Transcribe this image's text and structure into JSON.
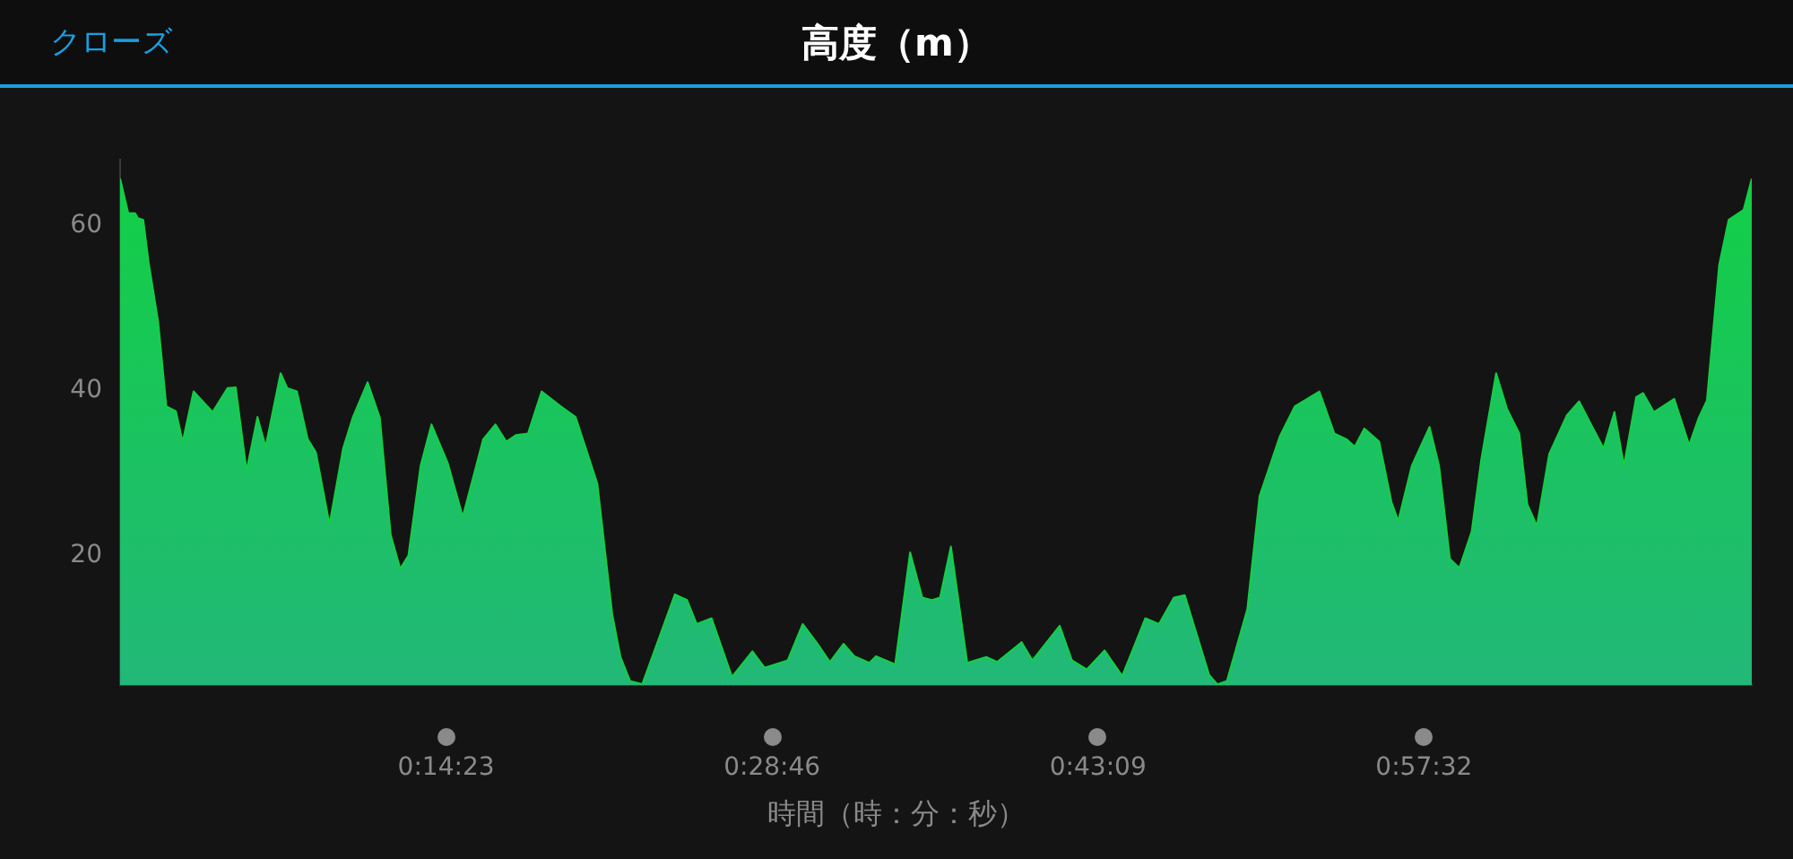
{
  "chart_data": {
    "type": "area",
    "title": "高度（m）",
    "xlabel": "時間（時：分：秒）",
    "annotations": [
      "クローズ"
    ],
    "color": "#12d044",
    "x": [
      0,
      0.006,
      0.011,
      0.013,
      0.017,
      0.021,
      0.028,
      0.034,
      0.041,
      0.046,
      0.054,
      0.068,
      0.079,
      0.085,
      0.093,
      0.101,
      0.107,
      0.118,
      0.123,
      0.13,
      0.138,
      0.144,
      0.154,
      0.164,
      0.171,
      0.182,
      0.191,
      0.199,
      0.206,
      0.212,
      0.221,
      0.229,
      0.241,
      0.252,
      0.267,
      0.276,
      0.284,
      0.291,
      0.3,
      0.31,
      0.324,
      0.335,
      0.351,
      0.362,
      0.368,
      0.375,
      0.384,
      0.408,
      0.417,
      0.424,
      0.435,
      0.45,
      0.465,
      0.474,
      0.491,
      0.502,
      0.513,
      0.522,
      0.532,
      0.54,
      0.551,
      0.556,
      0.57,
      0.581,
      0.59,
      0.597,
      0.603,
      0.611,
      0.623,
      0.637,
      0.645,
      0.663,
      0.671,
      0.691,
      0.7,
      0.711,
      0.724,
      0.737,
      0.754,
      0.764,
      0.775,
      0.783,
      0.801,
      0.807,
      0.814,
      0.829,
      0.838,
      0.853,
      0.864,
      0.882,
      0.893,
      0.902,
      0.908,
      0.915,
      0.926,
      0.935,
      0.94,
      0.95,
      0.963,
      0.97,
      0.978,
      0.985,
      0.994,
      1.001,
      1.012,
      1.02,
      1.029,
      1.035,
      1.042,
      1.051,
      1.064,
      1.073,
      1.091,
      1.099,
      1.106,
      1.115,
      1.12,
      1.128,
      1.143,
      1.154,
      1.161,
      1.167,
      1.176,
      1.183,
      1.194,
      1.2
    ],
    "values": [
      65.7,
      61.5,
      61.5,
      60.9,
      60.7,
      55.5,
      48.3,
      38.1,
      37.5,
      33.8,
      39.9,
      37.4,
      40.3,
      40.4,
      30.3,
      36.8,
      33.2,
      42.1,
      40.3,
      39.9,
      34.1,
      32.5,
      23.8,
      33.0,
      36.7,
      41.0,
      36.7,
      22.5,
      18.4,
      20.0,
      30.9,
      35.9,
      31.2,
      24.7,
      34.1,
      35.9,
      33.8,
      34.6,
      34.8,
      39.9,
      38.1,
      36.8,
      28.7,
      12.8,
      7.7,
      4.8,
      4.4,
      15.3,
      14.6,
      11.7,
      12.4,
      5.3,
      8.4,
      6.4,
      7.3,
      11.7,
      9.3,
      7.1,
      9.3,
      7.8,
      7.0,
      7.8,
      6.8,
      20.4,
      14.9,
      14.6,
      14.9,
      21.1,
      7.0,
      7.7,
      7.1,
      9.5,
      7.3,
      11.5,
      7.3,
      6.2,
      8.5,
      5.4,
      12.4,
      11.7,
      14.9,
      15.2,
      5.5,
      4.4,
      4.8,
      13.5,
      27.2,
      34.5,
      38.1,
      39.9,
      34.8,
      34.1,
      33.2,
      35.4,
      33.8,
      26.5,
      24.2,
      30.9,
      35.6,
      30.9,
      19.6,
      18.5,
      22.9,
      31.6,
      42.1,
      37.8,
      34.8,
      26.2,
      23.6,
      32.3,
      37.0,
      38.7,
      33.0,
      37.4,
      30.9,
      39.2,
      39.7,
      37.4,
      39.0,
      33.4,
      36.7,
      38.8,
      55.2,
      60.7,
      61.9,
      65.7
    ],
    "xlim": [
      0,
      1.2
    ],
    "xticks": [
      {
        "value": 0.239722,
        "label": "0:14:23"
      },
      {
        "value": 0.479444,
        "label": "0:28:46"
      },
      {
        "value": 0.719167,
        "label": "0:43:09"
      },
      {
        "value": 0.958889,
        "label": "0:57:32"
      }
    ],
    "ylim": [
      4.3,
      68
    ],
    "yticks": [
      20,
      40,
      60
    ],
    "legend": false
  }
}
